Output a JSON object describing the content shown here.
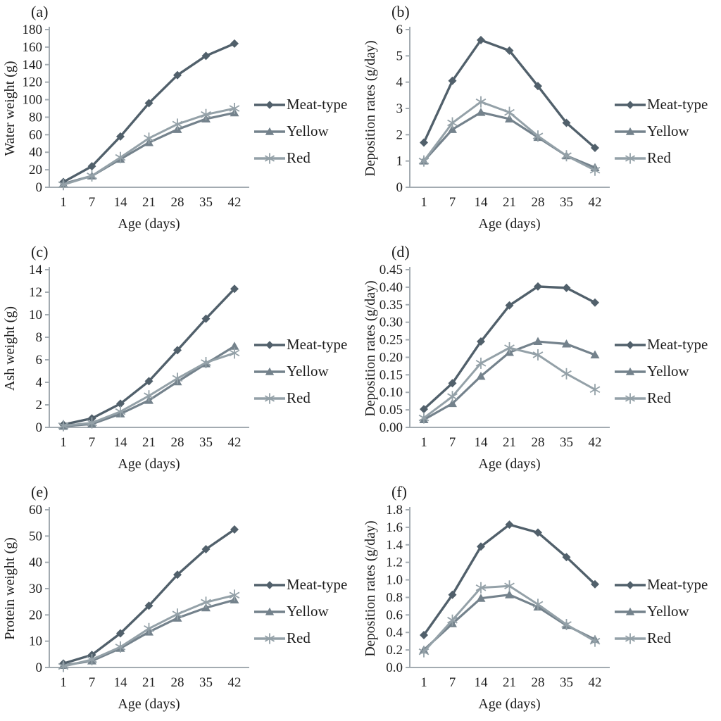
{
  "style": {
    "axis_color": "#a3abb1",
    "text_color": "#1e1e1e",
    "background": "#ffffff"
  },
  "series_style": {
    "Meat-type": {
      "color": "#51606b",
      "marker": "diamond",
      "width": 3.4
    },
    "Yellow": {
      "color": "#74828c",
      "marker": "triangle",
      "width": 3.2
    },
    "Red": {
      "color": "#94a1a8",
      "marker": "asterisk",
      "width": 3.0
    }
  },
  "legend": {
    "items": [
      {
        "label": "Meat-type",
        "marker": "diamond"
      },
      {
        "label": "Yellow",
        "marker": "triangle"
      },
      {
        "label": "Red",
        "marker": "asterisk"
      }
    ]
  },
  "chart_data": [
    {
      "panel": "(a)",
      "type": "line",
      "title": "",
      "xlabel": "Age (days)",
      "ylabel": "Water weight (g)",
      "categories": [
        "1",
        "7",
        "14",
        "21",
        "28",
        "35",
        "42"
      ],
      "ylim": [
        0,
        180
      ],
      "ystep": 20,
      "ydecimals": 0,
      "grid": false,
      "legend_position": "right",
      "series": [
        {
          "name": "Meat-type",
          "values": [
            6,
            24,
            58,
            96,
            128,
            150,
            164
          ]
        },
        {
          "name": "Yellow",
          "values": [
            4,
            13,
            32,
            51,
            66,
            78,
            85
          ]
        },
        {
          "name": "Red",
          "values": [
            3,
            13,
            34,
            56,
            72,
            83,
            90
          ]
        }
      ]
    },
    {
      "panel": "(b)",
      "type": "line",
      "title": "",
      "xlabel": "Age (days)",
      "ylabel": "Deposition rates (g/day)",
      "categories": [
        "1",
        "7",
        "14",
        "21",
        "28",
        "35",
        "42"
      ],
      "ylim": [
        0,
        6
      ],
      "ystep": 1,
      "ydecimals": 0,
      "grid": false,
      "legend_position": "right",
      "series": [
        {
          "name": "Meat-type",
          "values": [
            1.7,
            4.05,
            5.6,
            5.2,
            3.85,
            2.45,
            1.5
          ]
        },
        {
          "name": "Yellow",
          "values": [
            1.0,
            2.2,
            2.85,
            2.6,
            1.9,
            1.2,
            0.75
          ]
        },
        {
          "name": "Red",
          "values": [
            1.0,
            2.45,
            3.25,
            2.85,
            1.95,
            1.2,
            0.65
          ]
        }
      ]
    },
    {
      "panel": "(c)",
      "type": "line",
      "title": "",
      "xlabel": "Age (days)",
      "ylabel": "Ash weight (g)",
      "categories": [
        "1",
        "7",
        "14",
        "21",
        "28",
        "35",
        "42"
      ],
      "ylim": [
        0,
        14
      ],
      "ystep": 2,
      "ydecimals": 0,
      "grid": false,
      "legend_position": "right",
      "series": [
        {
          "name": "Meat-type",
          "values": [
            0.25,
            0.8,
            2.1,
            4.1,
            6.85,
            9.65,
            12.3
          ]
        },
        {
          "name": "Yellow",
          "values": [
            0.1,
            0.3,
            1.2,
            2.4,
            4.05,
            5.65,
            7.2
          ]
        },
        {
          "name": "Red",
          "values": [
            0.15,
            0.4,
            1.4,
            2.8,
            4.35,
            5.75,
            6.6
          ]
        }
      ]
    },
    {
      "panel": "(d)",
      "type": "line",
      "title": "",
      "xlabel": "Age (days)",
      "ylabel": "Deposition rates (g/day)",
      "categories": [
        "1",
        "7",
        "14",
        "21",
        "28",
        "35",
        "42"
      ],
      "ylim": [
        0,
        0.45
      ],
      "ystep": 0.05,
      "ydecimals": 2,
      "grid": false,
      "legend_position": "right",
      "series": [
        {
          "name": "Meat-type",
          "values": [
            0.052,
            0.126,
            0.245,
            0.348,
            0.402,
            0.398,
            0.356
          ]
        },
        {
          "name": "Yellow",
          "values": [
            0.022,
            0.068,
            0.146,
            0.214,
            0.245,
            0.238,
            0.207
          ]
        },
        {
          "name": "Red",
          "values": [
            0.027,
            0.088,
            0.183,
            0.227,
            0.207,
            0.153,
            0.108
          ]
        }
      ]
    },
    {
      "panel": "(e)",
      "type": "line",
      "title": "",
      "xlabel": "Age (days)",
      "ylabel": "Protein weight (g)",
      "categories": [
        "1",
        "7",
        "14",
        "21",
        "28",
        "35",
        "42"
      ],
      "ylim": [
        0,
        60
      ],
      "ystep": 10,
      "ydecimals": 0,
      "grid": false,
      "legend_position": "right",
      "series": [
        {
          "name": "Meat-type",
          "values": [
            1.5,
            4.8,
            13,
            23.5,
            35.3,
            45,
            52.5
          ]
        },
        {
          "name": "Yellow",
          "values": [
            0.8,
            2.5,
            7.3,
            13.5,
            18.8,
            22.7,
            25.7
          ]
        },
        {
          "name": "Red",
          "values": [
            0.4,
            3,
            7.8,
            14.8,
            20.3,
            24.8,
            27.5
          ]
        }
      ]
    },
    {
      "panel": "(f)",
      "type": "line",
      "title": "",
      "xlabel": "Age (days)",
      "ylabel": "Deposition rates (g/day)",
      "categories": [
        "1",
        "7",
        "14",
        "21",
        "28",
        "35",
        "42"
      ],
      "ylim": [
        0,
        1.8
      ],
      "ystep": 0.2,
      "ydecimals": 1,
      "grid": false,
      "legend_position": "right",
      "series": [
        {
          "name": "Meat-type",
          "values": [
            0.37,
            0.83,
            1.38,
            1.63,
            1.54,
            1.26,
            0.95
          ]
        },
        {
          "name": "Yellow",
          "values": [
            0.2,
            0.5,
            0.79,
            0.83,
            0.69,
            0.48,
            0.32
          ]
        },
        {
          "name": "Red",
          "values": [
            0.18,
            0.54,
            0.91,
            0.93,
            0.72,
            0.49,
            0.3
          ]
        }
      ]
    }
  ]
}
